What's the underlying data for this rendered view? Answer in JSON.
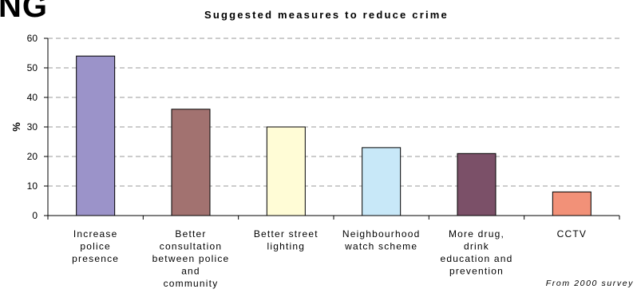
{
  "page": {
    "heading_fragment": "NG",
    "source_note": "From 2000 survey"
  },
  "chart_data": {
    "type": "bar",
    "title": "Suggested measures to reduce crime",
    "xlabel": "",
    "ylabel": "%",
    "ylim": [
      0,
      60
    ],
    "yticks": [
      0,
      10,
      20,
      30,
      40,
      50,
      60
    ],
    "grid": true,
    "legend": "none",
    "categories": [
      "Increase police presence",
      "Better consultation between police and community",
      "Better street lighting",
      "Neighbourhood watch scheme",
      "More drug, drink education and prevention",
      "CCTV"
    ],
    "category_lines": [
      [
        "Increase",
        "police",
        "presence"
      ],
      [
        "Better",
        "consultation",
        "between police",
        "and",
        "community"
      ],
      [
        "Better street",
        "lighting"
      ],
      [
        "Neighbourhood",
        "watch scheme"
      ],
      [
        "More drug,",
        "drink",
        "education and",
        "prevention"
      ],
      [
        "CCTV"
      ]
    ],
    "values": [
      54,
      36,
      30,
      23,
      21,
      8
    ],
    "colors": [
      "#9b93c9",
      "#a27270",
      "#fffcd6",
      "#c8e8f8",
      "#7b5068",
      "#f29178"
    ]
  }
}
